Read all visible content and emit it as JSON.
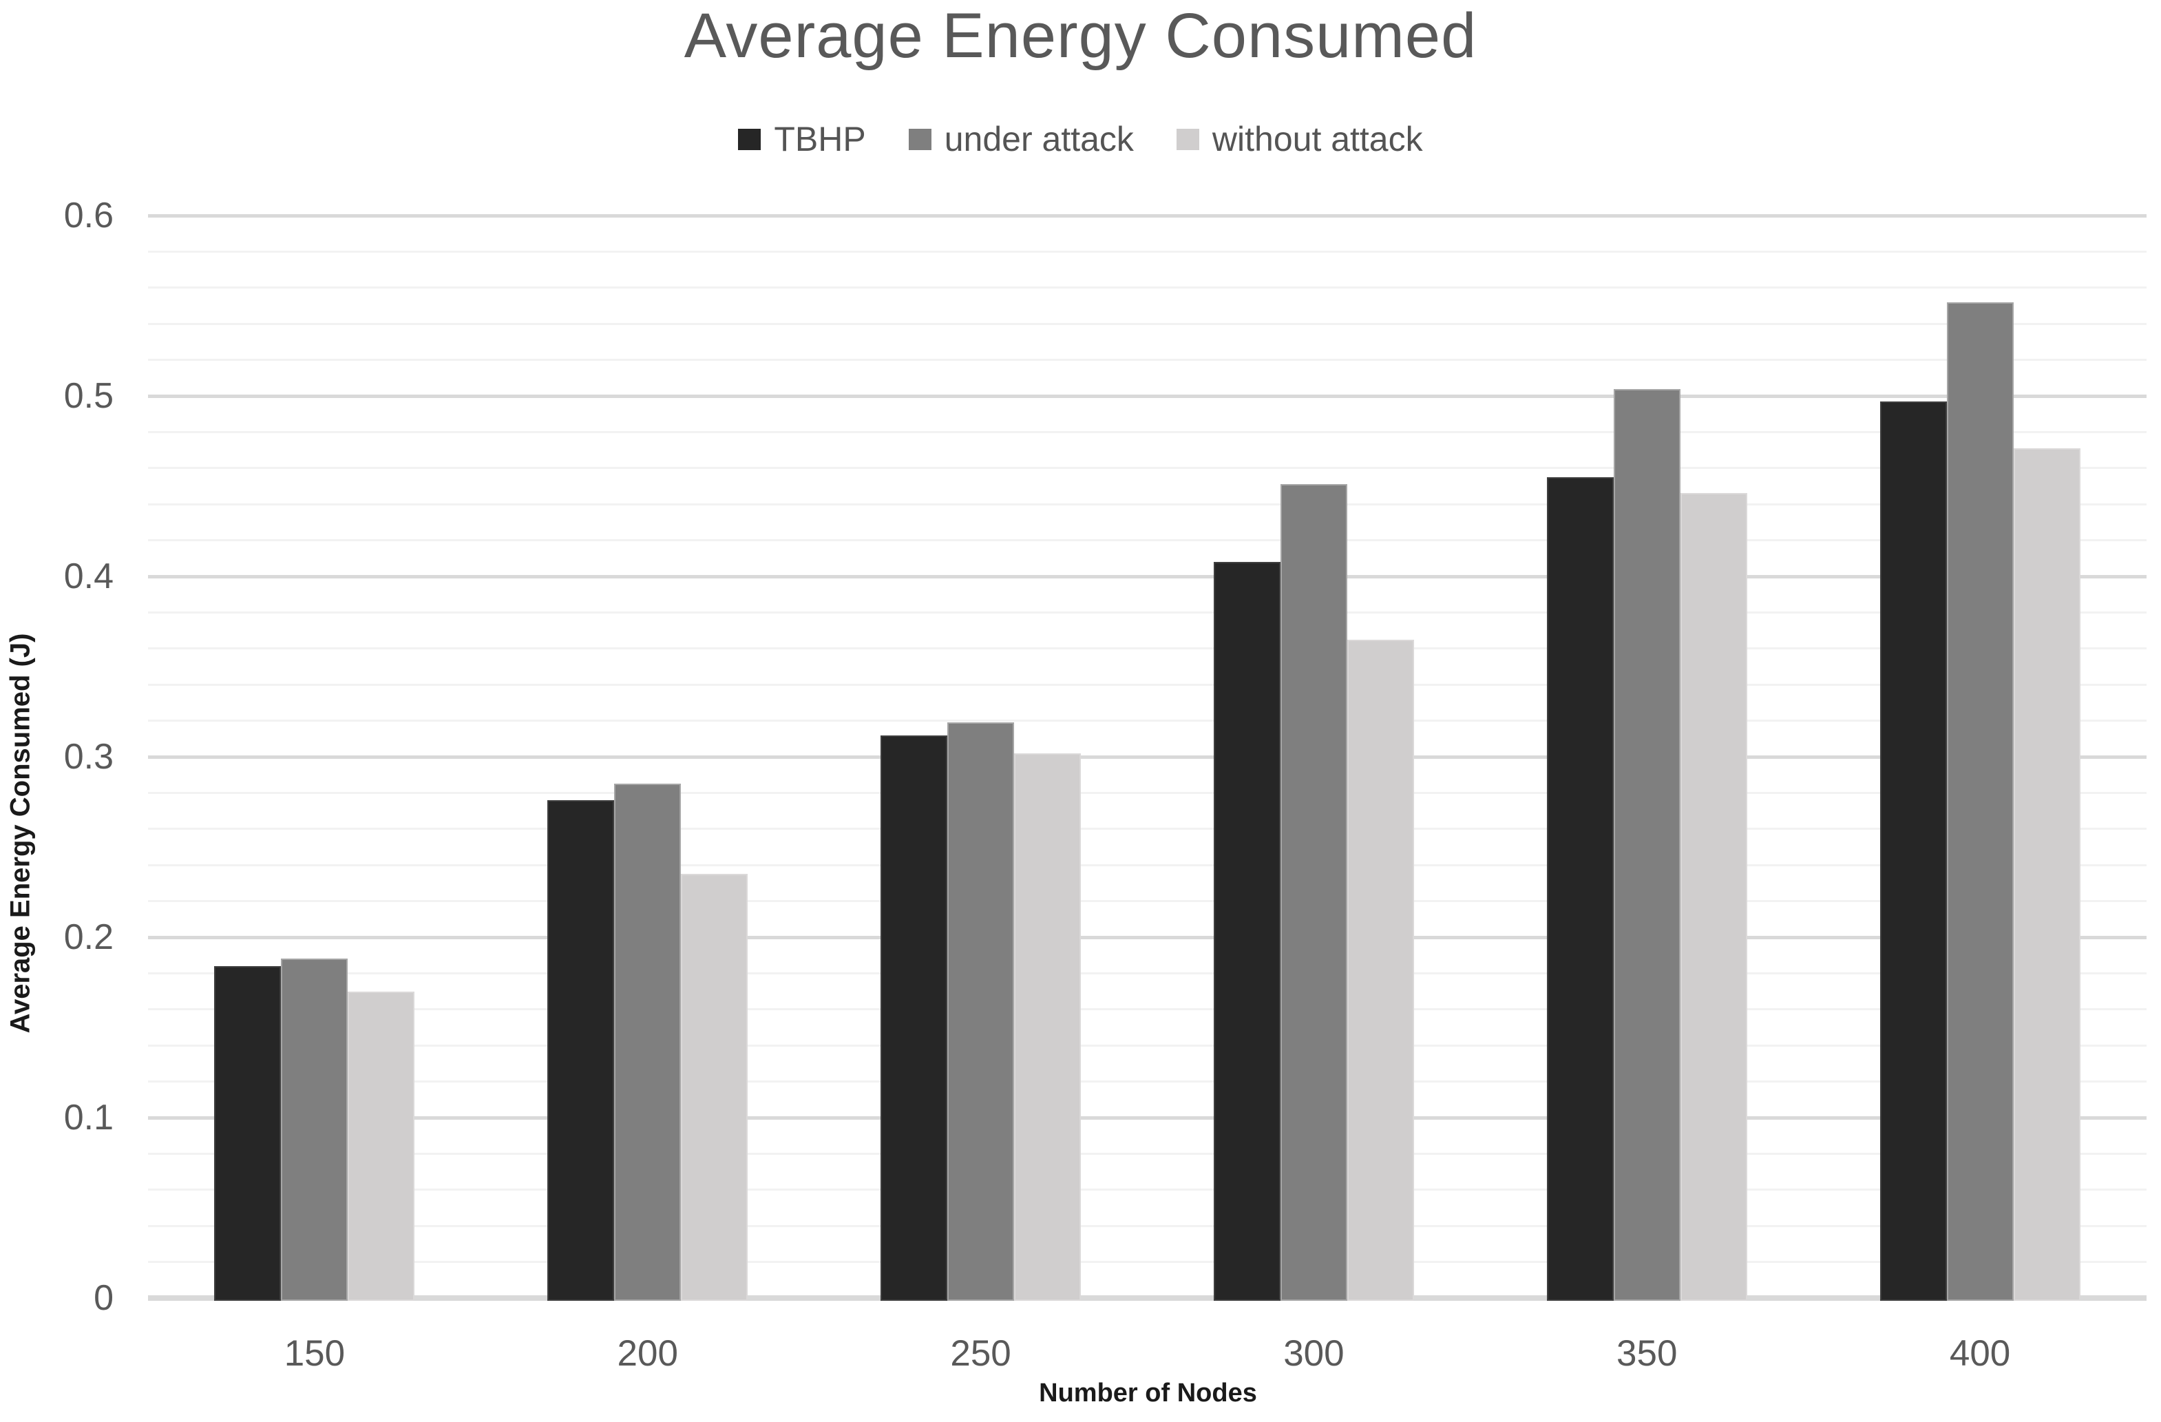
{
  "chart_data": {
    "type": "bar",
    "title": "Average Energy Consumed",
    "xlabel": "Number of Nodes",
    "ylabel": "Average Energy Consumed (J)",
    "categories": [
      "150",
      "200",
      "250",
      "300",
      "350",
      "400"
    ],
    "series": [
      {
        "name": "TBHP",
        "color": "#262626",
        "border_color": "#3f3f3f",
        "values": [
          0.184,
          0.276,
          0.312,
          0.408,
          0.455,
          0.497
        ]
      },
      {
        "name": "under attack",
        "color": "#7f7f7f",
        "border_color": "#a6a6a6",
        "values": [
          0.188,
          0.285,
          0.319,
          0.451,
          0.504,
          0.552
        ]
      },
      {
        "name": "without attack",
        "color": "#d0cece",
        "border_color": "#dbd9d9",
        "values": [
          0.17,
          0.235,
          0.302,
          0.365,
          0.446,
          0.471
        ]
      }
    ],
    "ylim": [
      0,
      0.6
    ],
    "ytick_labels": [
      "0",
      "0.1",
      "0.2",
      "0.3",
      "0.4",
      "0.5",
      "0.6"
    ],
    "ytick_step": 0.1,
    "minor_gridline_step": 0.02,
    "grid": true,
    "legend_position": "top-center",
    "styles": {
      "title_color": "#595959",
      "tick_label_color": "#595959",
      "axis_title_color": "#1a1a1a",
      "major_gridline_color": "#d9d9d9",
      "minor_gridline_color": "#f2f2f2",
      "axis_line_color": "#d9d9d9",
      "background_color": "#ffffff"
    }
  }
}
